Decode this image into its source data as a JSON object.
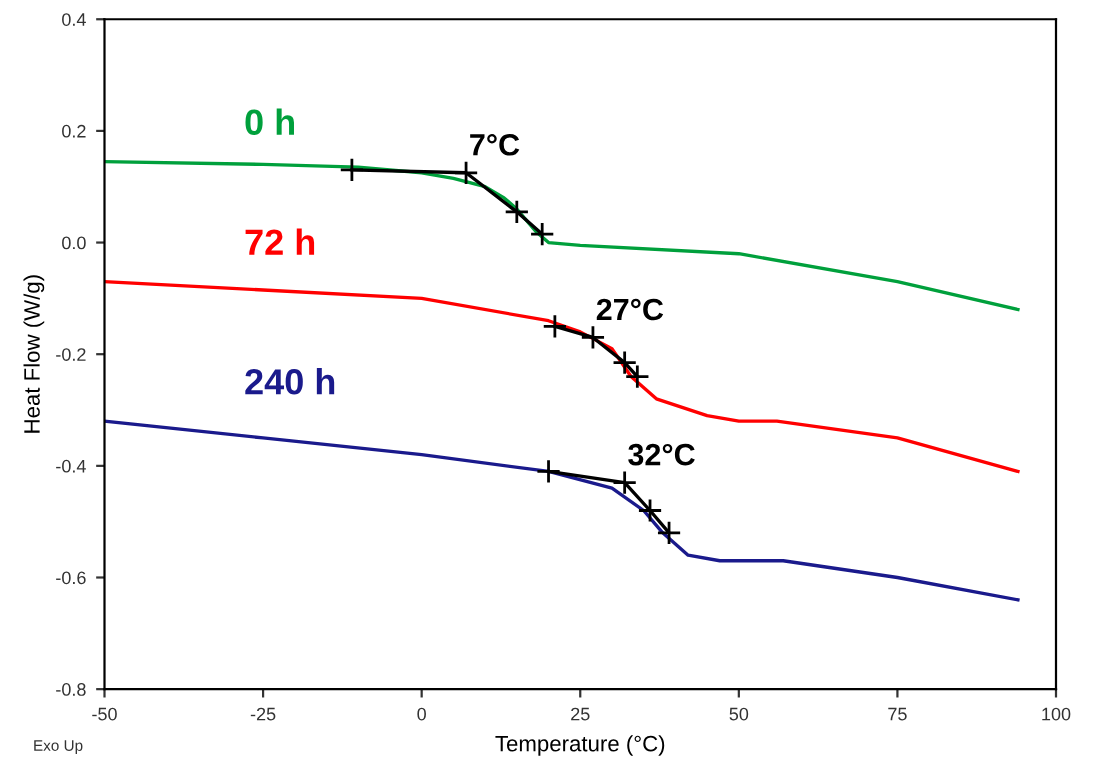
{
  "chart_data": {
    "type": "line",
    "xlabel": "Temperature (°C)",
    "ylabel": "Heat Flow (W/g)",
    "xlim": [
      -50,
      100
    ],
    "xticks": [
      -50,
      -25,
      0,
      25,
      50,
      75,
      100
    ],
    "ylim": [
      -0.8,
      0.4
    ],
    "yticks": [
      {
        "value": -0.8,
        "label": "-0.8"
      },
      {
        "value": -0.6,
        "label": "-0.6"
      },
      {
        "value": -0.4,
        "label": "-0.4"
      },
      {
        "value": -0.2,
        "label": "-0.2"
      },
      {
        "value": 0,
        "label": "0.0"
      },
      {
        "value": 0.2,
        "label": "0.2"
      },
      {
        "value": 0.4,
        "label": "0.4"
      }
    ],
    "grid": false,
    "legend": false,
    "series": [
      {
        "name": "0 h",
        "color": "#00a03c",
        "x": [
          -50,
          -25,
          -10,
          -5,
          0,
          5,
          10,
          13,
          15,
          18,
          20,
          25,
          50,
          75,
          94
        ],
        "values": [
          0.145,
          0.14,
          0.135,
          0.13,
          0.125,
          0.115,
          0.1,
          0.08,
          0.06,
          0.02,
          0.0,
          -0.005,
          -0.02,
          -0.07,
          -0.12
        ]
      },
      {
        "name": "72 h",
        "color": "#ff0000",
        "x": [
          -50,
          -25,
          0,
          20,
          25,
          30,
          33,
          37,
          45,
          50,
          56,
          75,
          94
        ],
        "values": [
          -0.07,
          -0.085,
          -0.1,
          -0.14,
          -0.16,
          -0.19,
          -0.24,
          -0.28,
          -0.31,
          -0.32,
          -0.32,
          -0.35,
          -0.41
        ]
      },
      {
        "name": "240 h",
        "color": "#1a1a8c",
        "x": [
          -50,
          -25,
          0,
          20,
          30,
          35,
          38,
          42,
          47,
          57,
          75,
          94
        ],
        "values": [
          -0.32,
          -0.35,
          -0.38,
          -0.41,
          -0.44,
          -0.48,
          -0.52,
          -0.56,
          -0.57,
          -0.57,
          -0.6,
          -0.64
        ]
      },
      {
        "color": "#000000",
        "marker": "cross",
        "x": [
          -11,
          7,
          15,
          19
        ],
        "values": [
          0.13,
          0.125,
          0.055,
          0.015
        ]
      },
      {
        "color": "#000000",
        "marker": "cross",
        "x": [
          21,
          27,
          32,
          34
        ],
        "values": [
          -0.15,
          -0.17,
          -0.215,
          -0.24
        ]
      },
      {
        "color": "#000000",
        "marker": "cross",
        "x": [
          20,
          32,
          36,
          39
        ],
        "values": [
          -0.41,
          -0.43,
          -0.48,
          -0.52
        ]
      }
    ],
    "annotations": [
      {
        "text": "7°C",
        "x": 7,
        "y": 0.125
      },
      {
        "text": "27°C",
        "x": 27,
        "y": -0.17
      },
      {
        "text": "32°C",
        "x": 32,
        "y": -0.43
      },
      "Exo Up"
    ]
  }
}
